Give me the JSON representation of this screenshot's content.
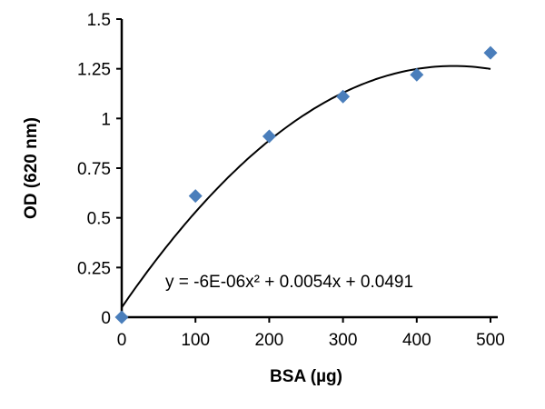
{
  "chart_data": {
    "type": "scatter",
    "title": "",
    "xlabel": "BSA (µg)",
    "ylabel": "OD (620 nm)",
    "xlim": [
      0,
      500
    ],
    "ylim": [
      0,
      1.5
    ],
    "x_ticks": [
      "0",
      "100",
      "200",
      "300",
      "400",
      "500"
    ],
    "y_ticks": [
      "0",
      "0.25",
      "0.5",
      "0.75",
      "1",
      "1.25",
      "1.5"
    ],
    "grid": false,
    "legend": "none",
    "marker": "diamond",
    "marker_color": "#4a7ebb",
    "points": [
      {
        "x": 0,
        "y": 0
      },
      {
        "x": 100,
        "y": 0.61
      },
      {
        "x": 200,
        "y": 0.91
      },
      {
        "x": 300,
        "y": 1.11
      },
      {
        "x": 400,
        "y": 1.22
      },
      {
        "x": 500,
        "y": 1.33
      }
    ],
    "trendline": {
      "type": "polynomial",
      "order": 2,
      "coefficients": {
        "a": -6e-06,
        "b": 0.0054,
        "c": 0.0491
      },
      "color": "#000000",
      "equation_label": "y = -6E-06x² + 0.0054x + 0.0491"
    }
  }
}
